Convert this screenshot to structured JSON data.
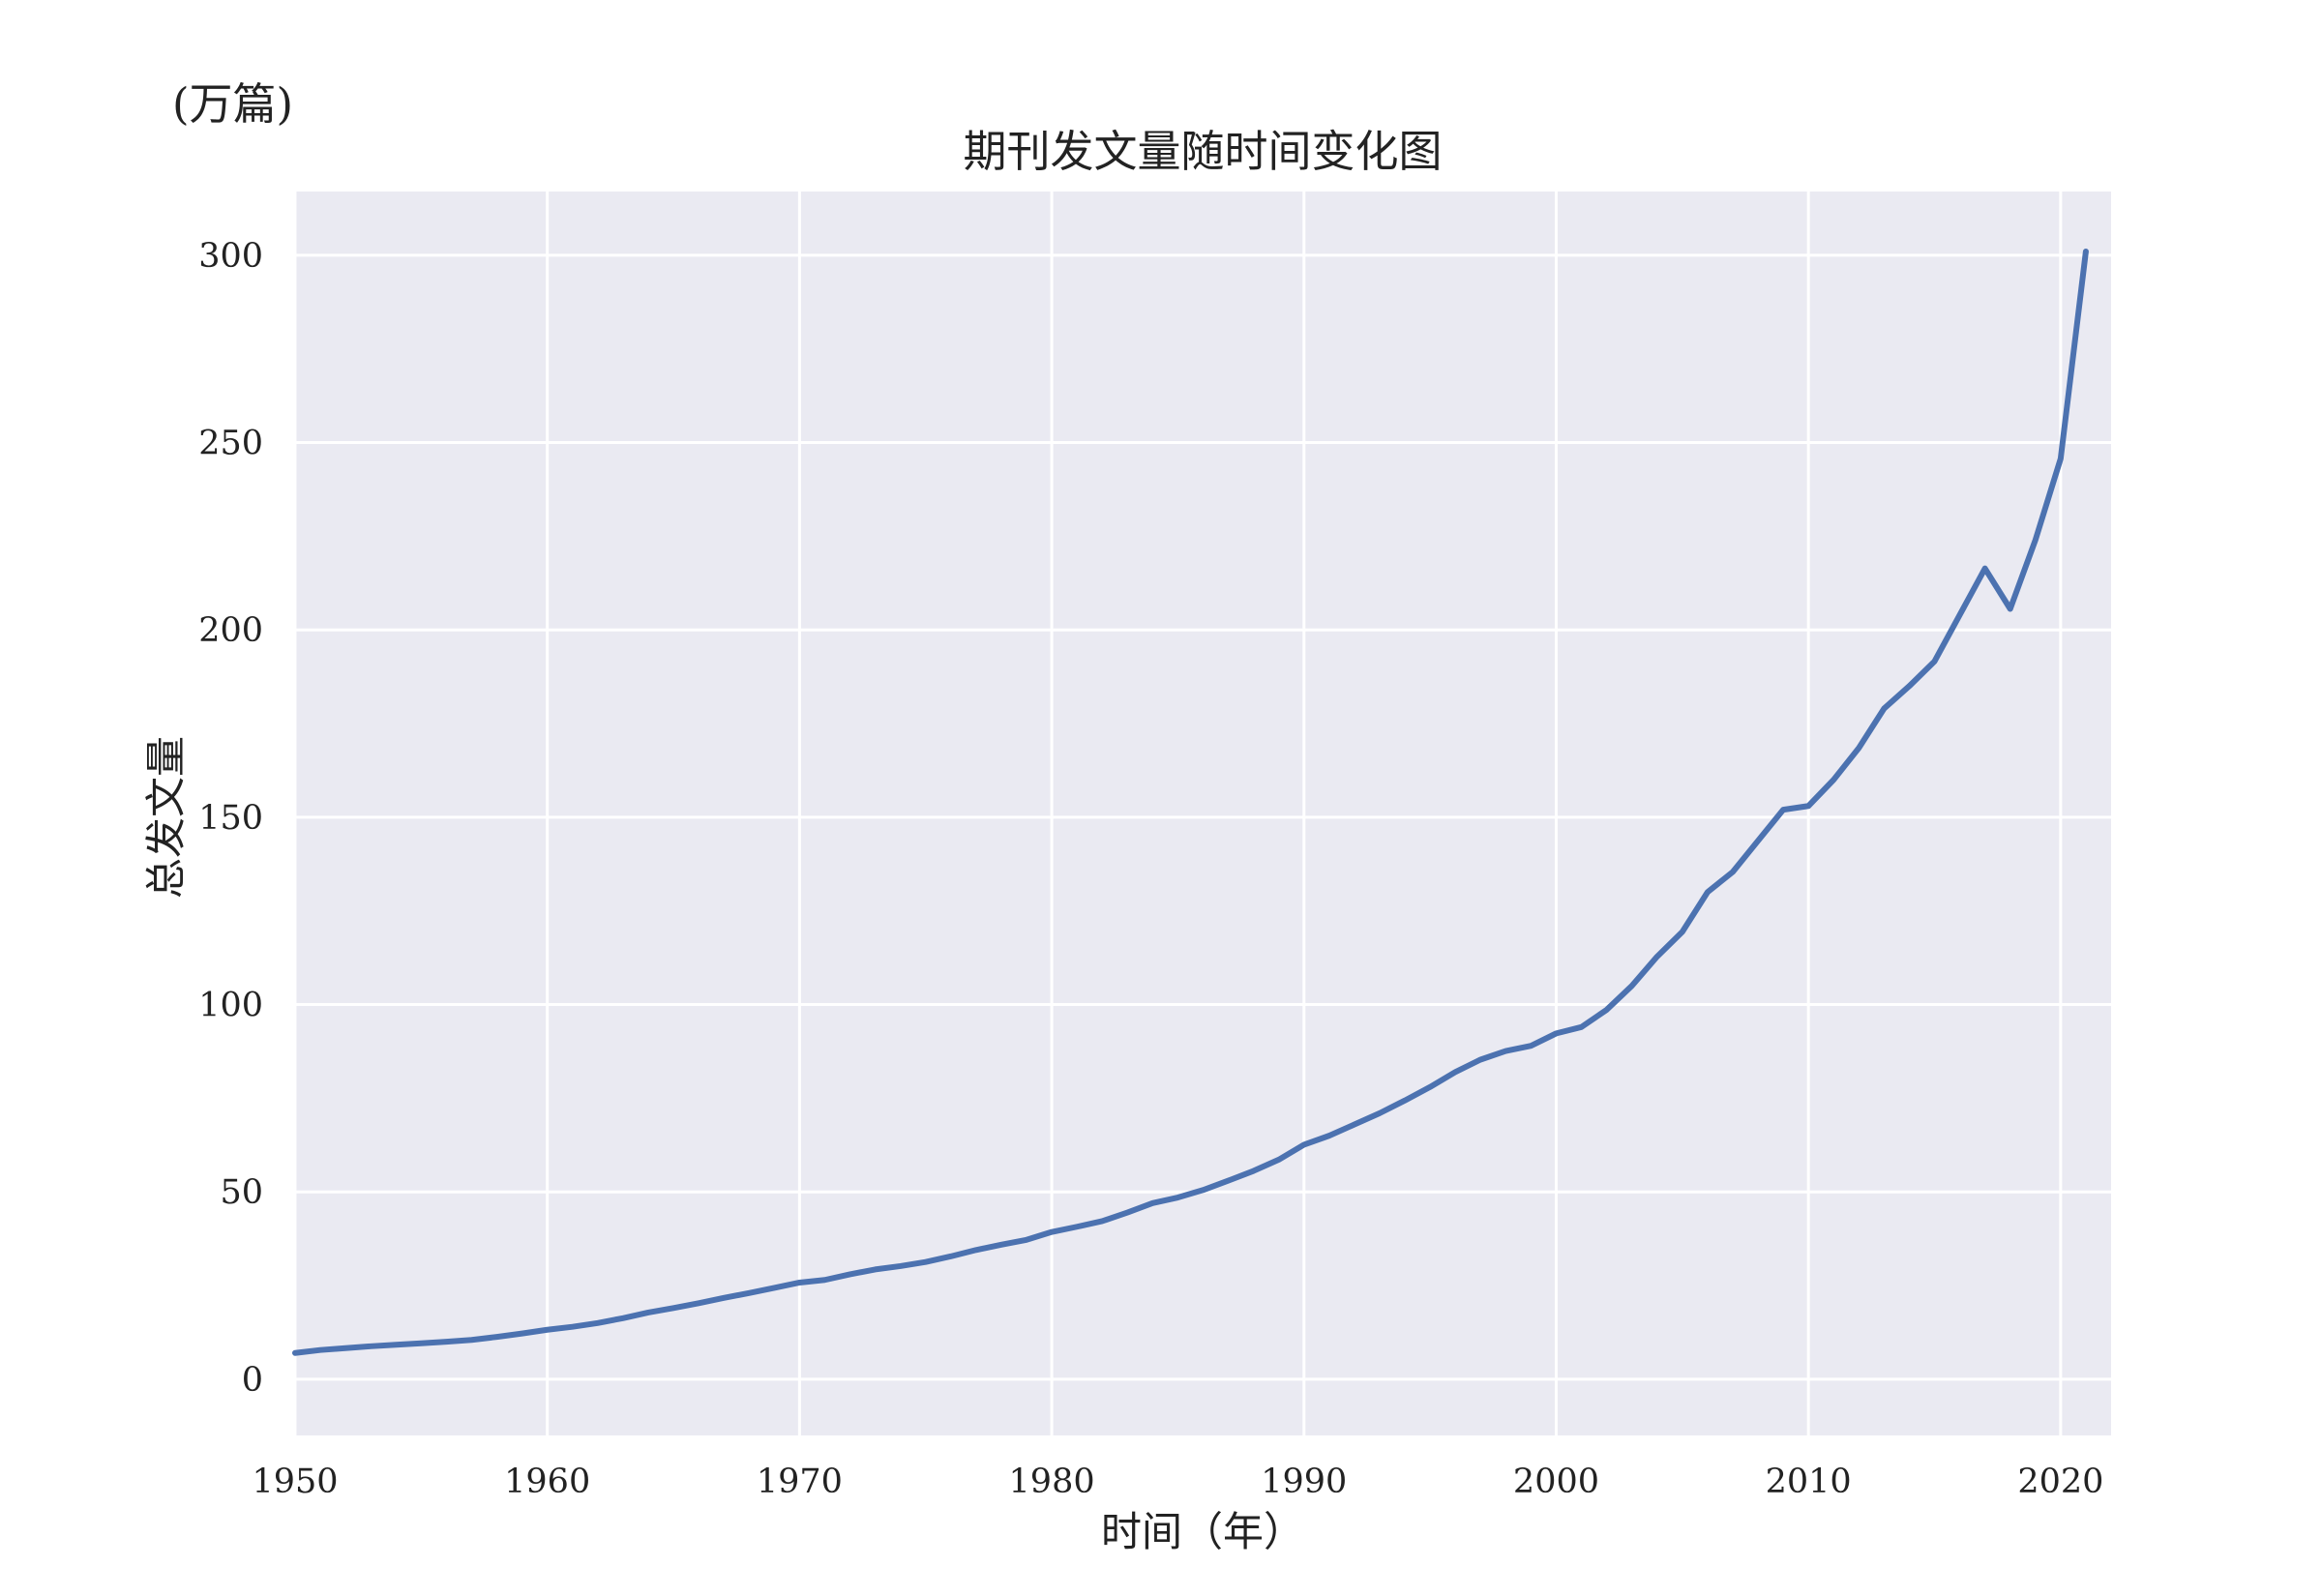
{
  "chart_data": {
    "type": "line",
    "title": "期刊发文量随时间变化图",
    "unit_label": "(万篇)",
    "xlabel": "时间（年）",
    "ylabel": "总发文量",
    "xlim": [
      1950,
      2022
    ],
    "ylim": [
      -15,
      317
    ],
    "x_ticks": [
      1950,
      1960,
      1970,
      1980,
      1990,
      2000,
      2010,
      2020
    ],
    "y_ticks": [
      0,
      50,
      100,
      150,
      200,
      250,
      300
    ],
    "grid": true,
    "legend": "none",
    "colors": {
      "background": "#eaeaf2",
      "grid": "#ffffff",
      "line": "#4c72b0"
    },
    "series": [
      {
        "x": [
          1950,
          1951,
          1952,
          1953,
          1954,
          1955,
          1956,
          1957,
          1958,
          1959,
          1960,
          1961,
          1962,
          1963,
          1964,
          1965,
          1966,
          1967,
          1968,
          1969,
          1970,
          1971,
          1972,
          1973,
          1974,
          1975,
          1976,
          1977,
          1978,
          1979,
          1980,
          1981,
          1982,
          1983,
          1984,
          1985,
          1986,
          1987,
          1988,
          1989,
          1990,
          1991,
          1992,
          1993,
          1994,
          1995,
          1996,
          1997,
          1998,
          1999,
          2000,
          2001,
          2002,
          2003,
          2004,
          2005,
          2006,
          2007,
          2008,
          2009,
          2010,
          2011,
          2012,
          2013,
          2014,
          2015,
          2016,
          2017,
          2018,
          2019,
          2020,
          2021
        ],
        "values": [
          7,
          7.8,
          8.3,
          8.8,
          9.2,
          9.6,
          10,
          10.5,
          11.3,
          12.2,
          13.2,
          14,
          15,
          16.3,
          17.8,
          19,
          20.3,
          21.7,
          23,
          24.4,
          25.8,
          26.5,
          28,
          29.3,
          30.2,
          31.3,
          32.8,
          34.5,
          35.9,
          37.2,
          39.3,
          40.7,
          42.2,
          44.5,
          47,
          48.5,
          50.5,
          53,
          55.6,
          58.6,
          62.6,
          65,
          68,
          71,
          74.4,
          78,
          82,
          85.3,
          87.6,
          89,
          92.3,
          94,
          98.6,
          105,
          112.8,
          119.4,
          130,
          135.4,
          143.7,
          152,
          153,
          160,
          168.5,
          179,
          185,
          191.6,
          204,
          216.4,
          205.6,
          224,
          245.7,
          301
        ]
      }
    ]
  }
}
